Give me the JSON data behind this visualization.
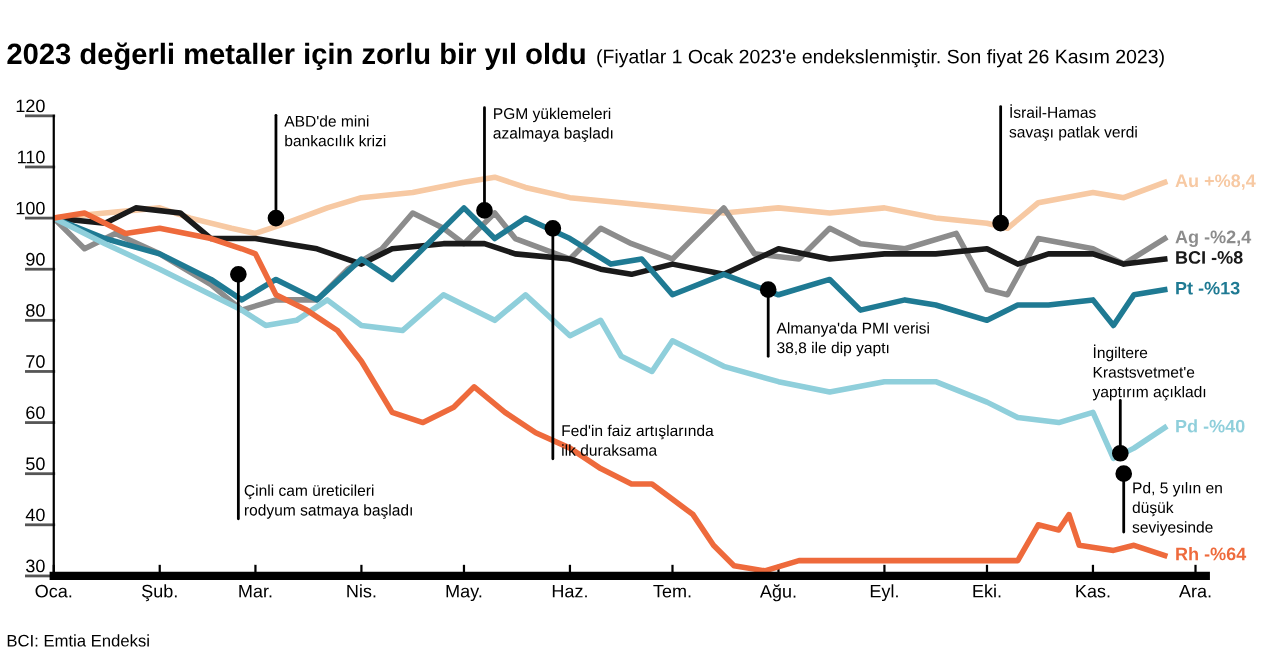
{
  "chart_data": {
    "type": "line",
    "title": "2023 değerli metaller için zorlu bir yıl oldu",
    "subtitle": "(Fiyatlar 1 Ocak 2023'e endekslenmiştir. Son fiyat 26 Kasım 2023)",
    "xlim": [
      "2023-01-01",
      "2023-12-04"
    ],
    "xticks": [
      {
        "value": "2023-01-01",
        "label": "Oca."
      },
      {
        "value": "2023-02-01",
        "label": "Şub."
      },
      {
        "value": "2023-03-01",
        "label": "Mar."
      },
      {
        "value": "2023-04-01",
        "label": "Nis."
      },
      {
        "value": "2023-05-01",
        "label": "May."
      },
      {
        "value": "2023-06-01",
        "label": "Haz."
      },
      {
        "value": "2023-07-01",
        "label": "Tem."
      },
      {
        "value": "2023-08-01",
        "label": "Ağu."
      },
      {
        "value": "2023-09-01",
        "label": "Eyl."
      },
      {
        "value": "2023-10-01",
        "label": "Eki."
      },
      {
        "value": "2023-11-01",
        "label": "Kas."
      },
      {
        "value": "2023-12-01",
        "label": "Ara."
      }
    ],
    "ylim": [
      30,
      120
    ],
    "yticks": [
      30,
      40,
      50,
      60,
      70,
      80,
      90,
      100,
      110,
      120
    ],
    "grid": false,
    "legend": false,
    "marker": "none",
    "line_style": "solid",
    "series": [
      {
        "name": "Au +%8,4",
        "color": "#f7c9a3",
        "x": [
          "2023-01-01",
          "2023-01-16",
          "2023-02-01",
          "2023-02-10",
          "2023-02-22",
          "2023-03-01",
          "2023-03-10",
          "2023-03-22",
          "2023-04-01",
          "2023-04-16",
          "2023-05-01",
          "2023-05-10",
          "2023-05-19",
          "2023-06-01",
          "2023-06-16",
          "2023-07-01",
          "2023-07-16",
          "2023-08-01",
          "2023-08-16",
          "2023-09-01",
          "2023-09-16",
          "2023-10-01",
          "2023-10-07",
          "2023-10-16",
          "2023-11-01",
          "2023-11-10",
          "2023-11-22"
        ],
        "values": [
          100,
          101,
          102,
          100,
          98,
          97,
          99,
          102,
          104,
          105,
          107,
          108,
          106,
          104,
          103,
          102,
          101,
          102,
          101,
          102,
          100,
          99,
          98,
          103,
          105,
          104,
          107
        ]
      },
      {
        "name": "Ag -%2,4",
        "color": "#8c8c8c",
        "x": [
          "2023-01-01",
          "2023-01-10",
          "2023-01-19",
          "2023-02-01",
          "2023-02-16",
          "2023-02-25",
          "2023-03-07",
          "2023-03-19",
          "2023-03-28",
          "2023-04-07",
          "2023-04-16",
          "2023-04-25",
          "2023-05-01",
          "2023-05-10",
          "2023-05-16",
          "2023-06-01",
          "2023-06-10",
          "2023-06-19",
          "2023-07-01",
          "2023-07-16",
          "2023-07-25",
          "2023-08-07",
          "2023-08-16",
          "2023-08-25",
          "2023-09-07",
          "2023-09-22",
          "2023-10-01",
          "2023-10-07",
          "2023-10-16",
          "2023-11-01",
          "2023-11-10",
          "2023-11-22"
        ],
        "values": [
          100,
          94,
          97,
          93,
          87,
          82,
          84,
          84,
          90,
          94,
          101,
          98,
          95,
          101,
          96,
          92,
          98,
          95,
          92,
          102,
          93,
          92,
          98,
          95,
          94,
          97,
          86,
          85,
          96,
          94,
          91,
          96
        ]
      },
      {
        "name": "BCI -%8",
        "color": "#1a1a1a",
        "x": [
          "2023-01-01",
          "2023-01-16",
          "2023-01-25",
          "2023-02-07",
          "2023-02-16",
          "2023-03-01",
          "2023-03-10",
          "2023-03-19",
          "2023-04-01",
          "2023-04-10",
          "2023-04-25",
          "2023-05-07",
          "2023-05-16",
          "2023-06-01",
          "2023-06-10",
          "2023-06-19",
          "2023-07-01",
          "2023-07-16",
          "2023-08-01",
          "2023-08-16",
          "2023-09-01",
          "2023-09-16",
          "2023-10-01",
          "2023-10-10",
          "2023-10-19",
          "2023-11-01",
          "2023-11-10",
          "2023-11-22"
        ],
        "values": [
          100,
          99,
          102,
          101,
          96,
          96,
          95,
          94,
          91,
          94,
          95,
          95,
          93,
          92,
          90,
          89,
          91,
          89,
          94,
          92,
          93,
          93,
          94,
          91,
          93,
          93,
          91,
          92
        ]
      },
      {
        "name": "Pt -%13",
        "color": "#1f7a93",
        "x": [
          "2023-01-01",
          "2023-01-16",
          "2023-02-01",
          "2023-02-16",
          "2023-02-25",
          "2023-03-07",
          "2023-03-19",
          "2023-04-01",
          "2023-04-10",
          "2023-04-19",
          "2023-05-01",
          "2023-05-10",
          "2023-05-19",
          "2023-06-01",
          "2023-06-13",
          "2023-06-22",
          "2023-07-01",
          "2023-07-16",
          "2023-08-01",
          "2023-08-16",
          "2023-08-25",
          "2023-09-07",
          "2023-09-16",
          "2023-10-01",
          "2023-10-10",
          "2023-10-19",
          "2023-11-01",
          "2023-11-07",
          "2023-11-13",
          "2023-11-22"
        ],
        "values": [
          100,
          96,
          93,
          88,
          84,
          88,
          84,
          92,
          88,
          94,
          102,
          96,
          100,
          96,
          91,
          92,
          85,
          89,
          85,
          88,
          82,
          84,
          83,
          80,
          83,
          83,
          84,
          79,
          85,
          86
        ]
      },
      {
        "name": "Pd -%40",
        "color": "#8fcfdb",
        "x": [
          "2023-01-01",
          "2023-01-16",
          "2023-02-01",
          "2023-02-16",
          "2023-02-25",
          "2023-03-04",
          "2023-03-13",
          "2023-03-22",
          "2023-04-01",
          "2023-04-13",
          "2023-04-25",
          "2023-05-01",
          "2023-05-10",
          "2023-05-19",
          "2023-06-01",
          "2023-06-10",
          "2023-06-16",
          "2023-06-25",
          "2023-07-01",
          "2023-07-16",
          "2023-08-01",
          "2023-08-16",
          "2023-09-01",
          "2023-09-16",
          "2023-10-01",
          "2023-10-10",
          "2023-10-22",
          "2023-11-01",
          "2023-11-07",
          "2023-11-13",
          "2023-11-22"
        ],
        "values": [
          100,
          95,
          90,
          85,
          82,
          79,
          80,
          84,
          79,
          78,
          85,
          83,
          80,
          85,
          77,
          80,
          73,
          70,
          76,
          71,
          68,
          66,
          68,
          68,
          64,
          61,
          60,
          62,
          53,
          55,
          59
        ]
      },
      {
        "name": "Rh -%64",
        "color": "#ee6a3c",
        "x": [
          "2023-01-01",
          "2023-01-10",
          "2023-01-22",
          "2023-02-01",
          "2023-02-16",
          "2023-02-25",
          "2023-03-01",
          "2023-03-07",
          "2023-03-16",
          "2023-03-25",
          "2023-04-01",
          "2023-04-10",
          "2023-04-19",
          "2023-04-28",
          "2023-05-04",
          "2023-05-13",
          "2023-05-22",
          "2023-06-01",
          "2023-06-10",
          "2023-06-19",
          "2023-06-25",
          "2023-07-01",
          "2023-07-07",
          "2023-07-13",
          "2023-07-19",
          "2023-07-28",
          "2023-08-07",
          "2023-08-16",
          "2023-09-01",
          "2023-09-16",
          "2023-10-01",
          "2023-10-10",
          "2023-10-16",
          "2023-10-22",
          "2023-10-25",
          "2023-10-28",
          "2023-11-07",
          "2023-11-13",
          "2023-11-22"
        ],
        "values": [
          100,
          101,
          97,
          98,
          96,
          94,
          93,
          85,
          82,
          78,
          72,
          62,
          60,
          63,
          67,
          62,
          58,
          55,
          51,
          48,
          48,
          45,
          42,
          36,
          32,
          31,
          33,
          33,
          33,
          33,
          33,
          33,
          40,
          39,
          42,
          36,
          35,
          36,
          34
        ]
      }
    ],
    "annotations": [
      {
        "text": "Çinli cam üreticileri\nrodyum satmaya başladı",
        "x": "2023-02-24",
        "y": 89
      },
      {
        "text": "ABD'de mini\nbankacılık krizi",
        "x": "2023-03-07",
        "y": 100
      },
      {
        "text": "PGM yüklemeleri\nazalmaya başladı",
        "x": "2023-05-07",
        "y": 101.5
      },
      {
        "text": "Fed'in faiz artışlarında\nilk duraksama",
        "x": "2023-05-27",
        "y": 98
      },
      {
        "text": "Almanya'da PMI verisi\n38,8 ile dip yaptı",
        "x": "2023-07-29",
        "y": 86
      },
      {
        "text": "İsrail-Hamas\nsavaşı patlak verdi",
        "x": "2023-10-05",
        "y": 99
      },
      {
        "text": "İngiltere\nKrastsvetmet'e\nyaptırım açıkladı",
        "x": "2023-11-09",
        "y": 54
      },
      {
        "text": "Pd, 5 yılın en\ndüşük\nseviyesinde",
        "x": "2023-11-10",
        "y": 50
      },
      "BCI: Emtia Endeksi"
    ]
  }
}
